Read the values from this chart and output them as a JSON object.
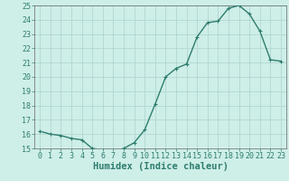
{
  "x": [
    0,
    1,
    2,
    3,
    4,
    5,
    6,
    7,
    8,
    9,
    10,
    11,
    12,
    13,
    14,
    15,
    16,
    17,
    18,
    19,
    20,
    21,
    22,
    23
  ],
  "y": [
    16.2,
    16.0,
    15.9,
    15.7,
    15.6,
    15.0,
    14.9,
    14.8,
    15.0,
    15.4,
    16.3,
    18.1,
    20.0,
    20.6,
    20.9,
    22.8,
    23.8,
    23.9,
    24.8,
    25.0,
    24.4,
    23.2,
    21.2,
    21.1
  ],
  "xlabel": "Humidex (Indice chaleur)",
  "ylim": [
    15,
    25
  ],
  "xlim": [
    -0.5,
    23.5
  ],
  "yticks": [
    15,
    16,
    17,
    18,
    19,
    20,
    21,
    22,
    23,
    24,
    25
  ],
  "xticks": [
    0,
    1,
    2,
    3,
    4,
    5,
    6,
    7,
    8,
    9,
    10,
    11,
    12,
    13,
    14,
    15,
    16,
    17,
    18,
    19,
    20,
    21,
    22,
    23
  ],
  "line_color": "#2e7d6e",
  "marker": "+",
  "bg_color": "#ceeee8",
  "grid_color": "#aad4cc",
  "axis_color": "#666666",
  "label_color": "#2e7d6e",
  "tick_font_size": 6.0,
  "xlabel_fontsize": 7.5
}
